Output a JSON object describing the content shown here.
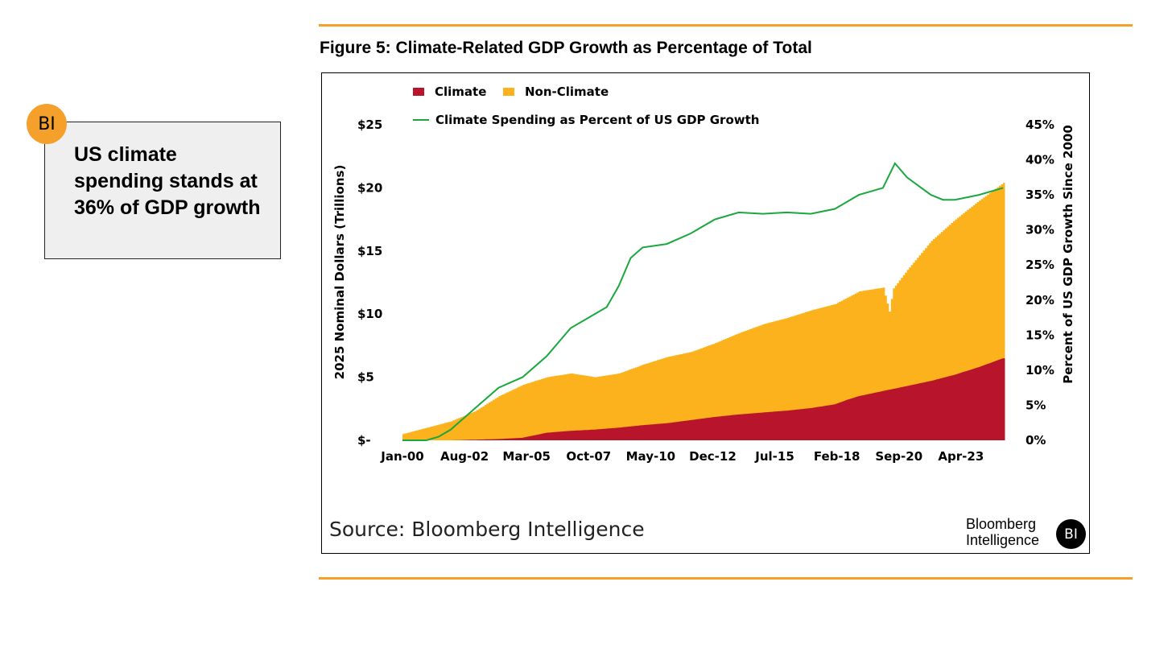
{
  "callout": {
    "badge_text": "BI",
    "text": "US climate spending stands at 36% of GDP growth"
  },
  "figure_title": "Figure 5: Climate-Related GDP Growth as Percentage of Total",
  "source_text": "Source: Bloomberg Intelligence",
  "brand": {
    "line1": "Bloomberg",
    "line2": "Intelligence",
    "badge_text": "BI"
  },
  "colors": {
    "climate": "#b8142b",
    "non_climate": "#fbb21c",
    "line": "#1aa83e",
    "accent": "#f5a02a"
  },
  "chart_data": {
    "type": "area",
    "title": "Figure 5: Climate-Related GDP Growth as Percentage of Total",
    "ylabel": "2025 Nominal Dollars (Trillions)",
    "y2label": "Percent of US GDP Growth Since 2000",
    "x_tick_labels": [
      "Jan-00",
      "Aug-02",
      "Mar-05",
      "Oct-07",
      "May-10",
      "Dec-12",
      "Jul-15",
      "Feb-18",
      "Sep-20",
      "Apr-23"
    ],
    "y_tick_labels": [
      "$-",
      "$5",
      "$10",
      "$15",
      "$20",
      "$25"
    ],
    "y2_tick_labels": [
      "0%",
      "5%",
      "10%",
      "15%",
      "20%",
      "25%",
      "30%",
      "35%",
      "40%",
      "45%"
    ],
    "ylim": [
      0,
      25
    ],
    "y2lim": [
      0,
      45
    ],
    "xlim": [
      2000.0,
      2025.4
    ],
    "legend": {
      "placement": "top-left",
      "climate": "Climate",
      "non_climate": "Non-Climate",
      "line": "Climate Spending as Percent of US GDP Growth"
    },
    "series": [
      {
        "name": "Climate",
        "kind": "stacked-area",
        "x": [
          2000.0,
          2002.0,
          2003.0,
          2004.0,
          2005.0,
          2006.0,
          2007.0,
          2008.0,
          2009.0,
          2010.0,
          2011.0,
          2012.0,
          2013.0,
          2014.0,
          2015.0,
          2016.0,
          2017.0,
          2018.0,
          2018.5,
          2019.0,
          2020.0,
          2021.0,
          2022.0,
          2023.0,
          2024.0,
          2025.0
        ],
        "values": [
          0,
          0,
          0.05,
          0.1,
          0.2,
          0.6,
          0.75,
          0.85,
          1.0,
          1.2,
          1.35,
          1.6,
          1.85,
          2.05,
          2.2,
          2.35,
          2.55,
          2.85,
          3.2,
          3.5,
          3.9,
          4.3,
          4.7,
          5.2,
          5.8,
          6.5
        ]
      },
      {
        "name": "Non-Climate",
        "kind": "stacked-area",
        "x": [
          2000.0,
          2001.0,
          2002.0,
          2003.0,
          2004.0,
          2005.0,
          2006.0,
          2007.0,
          2008.0,
          2009.0,
          2010.0,
          2011.0,
          2012.0,
          2013.0,
          2014.0,
          2015.0,
          2016.0,
          2017.0,
          2018.0,
          2019.0,
          2020.0,
          2020.25,
          2020.4,
          2021.0,
          2022.0,
          2023.0,
          2024.0,
          2025.0
        ],
        "total": [
          0.5,
          1.0,
          1.5,
          2.3,
          3.5,
          4.4,
          5.0,
          5.3,
          5.0,
          5.3,
          6.0,
          6.6,
          7.0,
          7.7,
          8.5,
          9.2,
          9.7,
          10.3,
          10.8,
          11.8,
          12.1,
          10.2,
          12.0,
          13.5,
          15.8,
          17.5,
          19.0,
          20.4
        ]
      },
      {
        "name": "Climate Spending as Percent of US GDP Growth",
        "kind": "line",
        "axis": "right",
        "x": [
          2000.0,
          2001.0,
          2001.5,
          2002.0,
          2003.0,
          2004.0,
          2005.0,
          2006.0,
          2007.0,
          2008.0,
          2008.5,
          2009.0,
          2009.5,
          2010.0,
          2011.0,
          2012.0,
          2013.0,
          2014.0,
          2015.0,
          2016.0,
          2017.0,
          2018.0,
          2019.0,
          2020.0,
          2020.5,
          2021.0,
          2022.0,
          2022.5,
          2023.0,
          2024.0,
          2025.0
        ],
        "values": [
          0,
          0,
          0.5,
          1.5,
          4.5,
          7.5,
          9.0,
          12.0,
          16.0,
          18.0,
          19.0,
          22.0,
          26.0,
          27.5,
          28.0,
          29.5,
          31.5,
          32.5,
          32.3,
          32.5,
          32.3,
          33.0,
          35.0,
          36.0,
          39.5,
          37.5,
          35.0,
          34.3,
          34.3,
          35.0,
          36.0
        ]
      }
    ]
  }
}
